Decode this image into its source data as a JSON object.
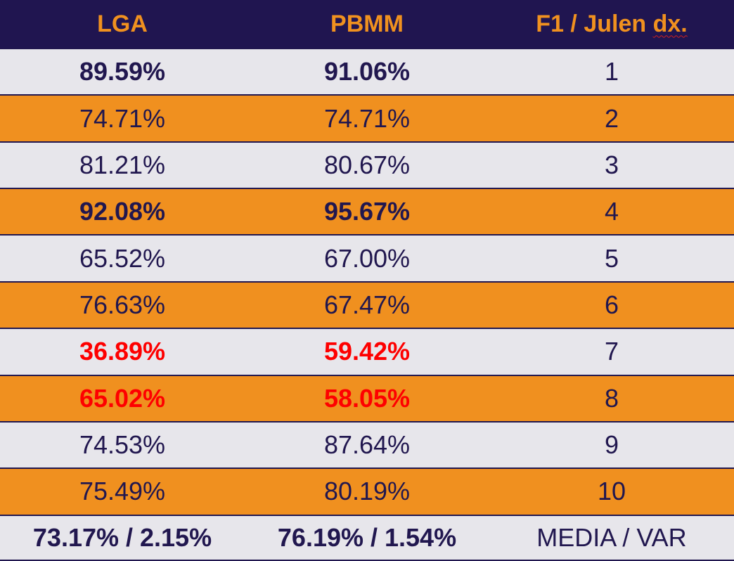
{
  "headers": [
    "LGA",
    "PBMM",
    "F1 / Julen dx."
  ],
  "rows": [
    {
      "lga": "89.59%",
      "pbmm": "91.06%",
      "id": "1"
    },
    {
      "lga": "74.71%",
      "pbmm": "74.71%",
      "id": "2"
    },
    {
      "lga": "81.21%",
      "pbmm": "80.67%",
      "id": "3"
    },
    {
      "lga": "92.08%",
      "pbmm": "95.67%",
      "id": "4"
    },
    {
      "lga": "65.52%",
      "pbmm": "67.00%",
      "id": "5"
    },
    {
      "lga": "76.63%",
      "pbmm": "67.47%",
      "id": "6"
    },
    {
      "lga": "36.89%",
      "pbmm": "59.42%",
      "id": "7"
    },
    {
      "lga": "65.02%",
      "pbmm": "58.05%",
      "id": "8"
    },
    {
      "lga": "74.53%",
      "pbmm": "87.64%",
      "id": "9"
    },
    {
      "lga": "75.49%",
      "pbmm": "80.19%",
      "id": "10"
    }
  ],
  "summary": {
    "lga": "73.17% / 2.15%",
    "pbmm": "76.19% / 1.54%",
    "label": "MEDIA / VAR"
  },
  "colors": {
    "header_bg": "#201550",
    "header_text": "#f0911f",
    "row_light": "#e7e6eb",
    "row_orange": "#f0901f",
    "text": "#21174f",
    "highlight_red": "#fe0000"
  }
}
